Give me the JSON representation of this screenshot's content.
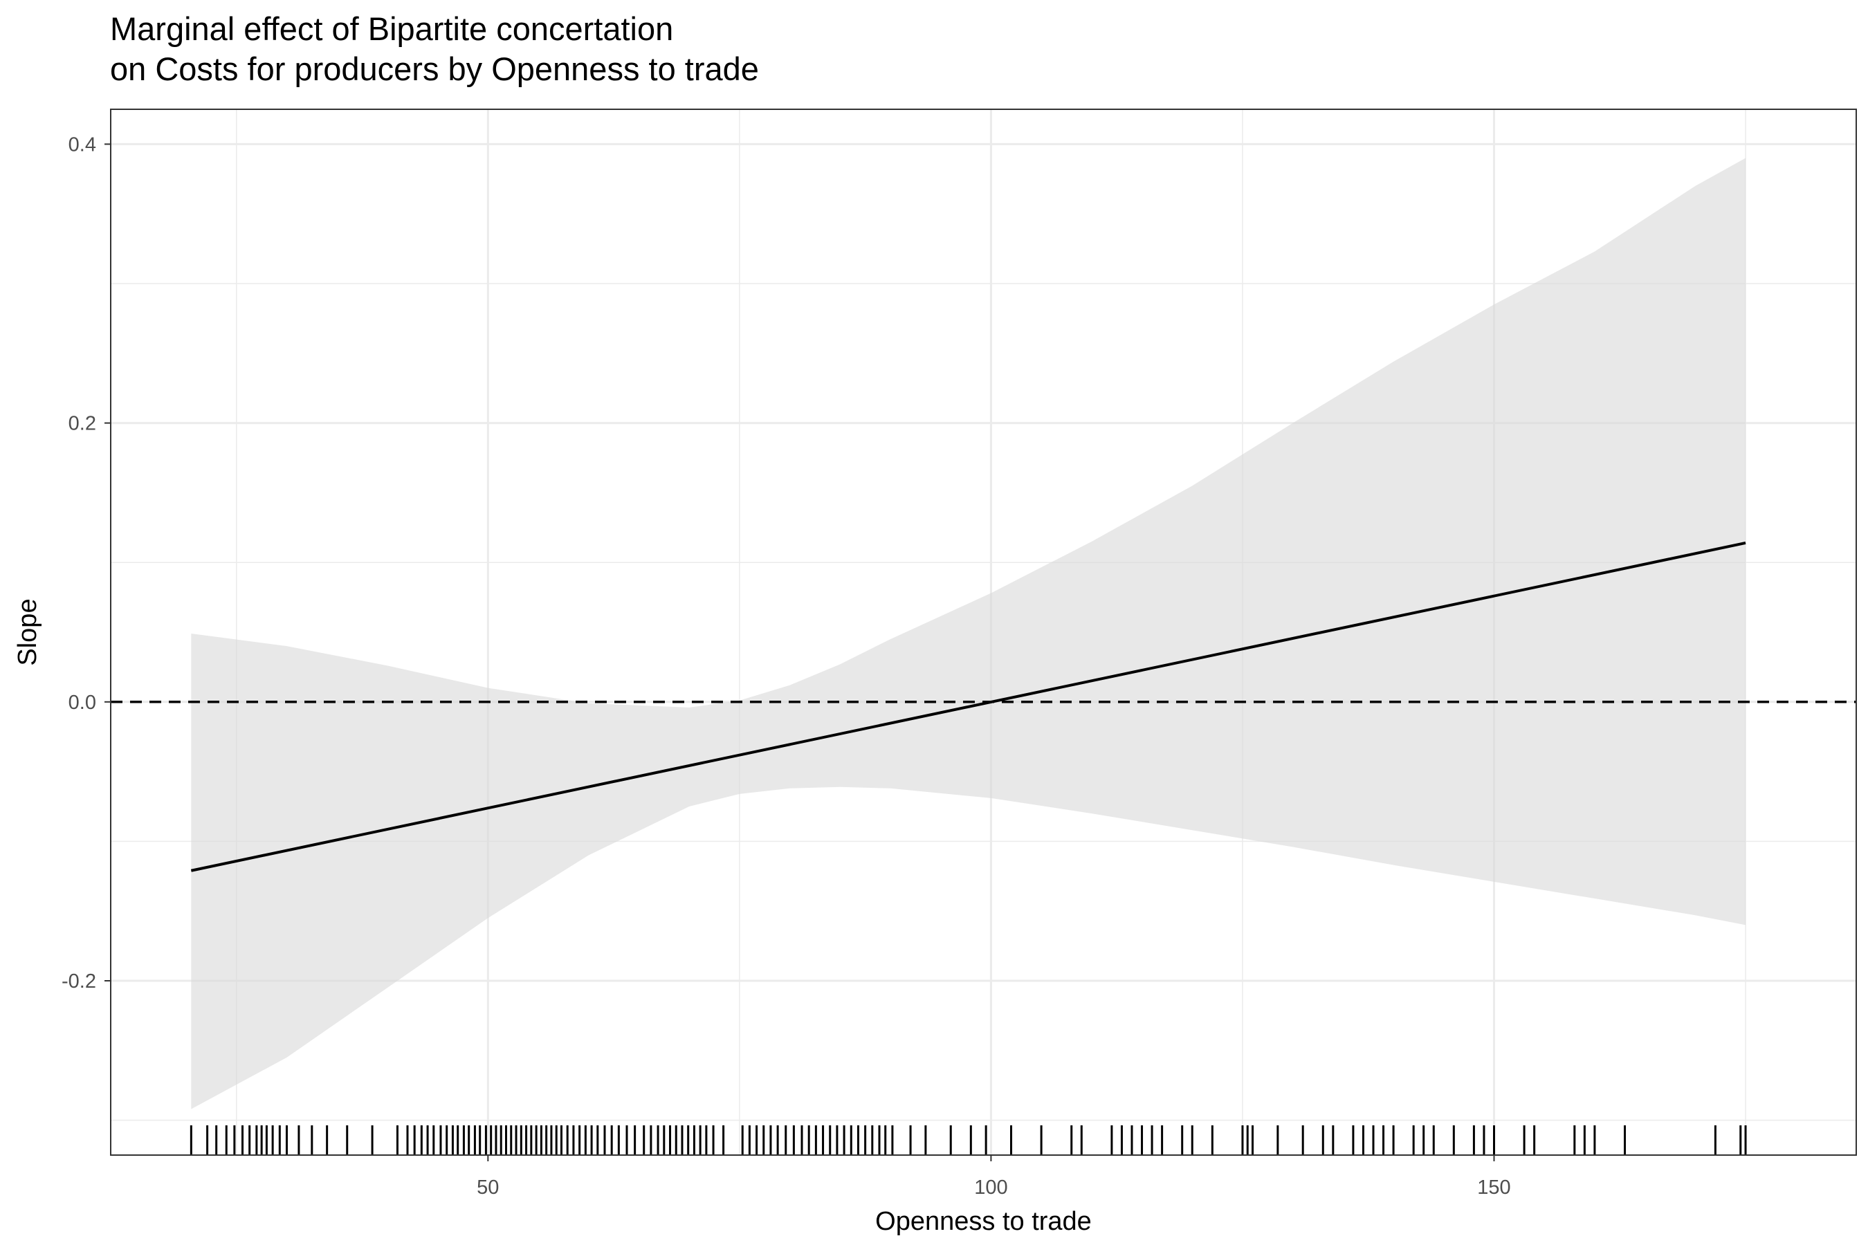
{
  "title_lines": [
    "Marginal effect of Bipartite concertation",
    "on Costs for producers by Openness to trade"
  ],
  "chart_data": {
    "type": "line",
    "title": "Marginal effect of Bipartite concertation on Costs for producers by Openness to trade",
    "xlabel": "Openness to trade",
    "ylabel": "Slope",
    "xlim": [
      12.5,
      186
    ],
    "ylim": [
      -0.325,
      0.425
    ],
    "x_ticks": [
      50,
      100,
      150
    ],
    "x_tick_labels": [
      "50",
      "100",
      "150"
    ],
    "y_ticks": [
      -0.2,
      0.0,
      0.2,
      0.4
    ],
    "y_tick_labels": [
      "-0.2",
      "0.0",
      "0.2",
      "0.4"
    ],
    "grid": true,
    "reference_line": {
      "y": 0.0,
      "style": "dashed"
    },
    "series": [
      {
        "type": "line",
        "x": [
          20.5,
          175
        ],
        "y": [
          -0.121,
          0.114
        ]
      }
    ],
    "confidence_band": {
      "x": [
        20.5,
        30,
        40,
        50,
        60,
        70,
        75,
        80,
        85,
        90,
        100,
        110,
        120,
        130,
        140,
        150,
        160,
        170,
        175
      ],
      "lower": [
        -0.292,
        -0.255,
        -0.205,
        -0.155,
        -0.11,
        -0.075,
        -0.066,
        -0.062,
        -0.061,
        -0.062,
        -0.069,
        -0.08,
        -0.092,
        -0.104,
        -0.117,
        -0.129,
        -0.141,
        -0.153,
        -0.16
      ],
      "upper": [
        0.049,
        0.04,
        0.026,
        0.01,
        -0.001,
        -0.004,
        0.001,
        0.012,
        0.027,
        0.045,
        0.078,
        0.115,
        0.155,
        0.2,
        0.244,
        0.285,
        0.323,
        0.37,
        0.39
      ]
    },
    "rug": [
      20.5,
      22.1,
      23,
      24,
      24.8,
      25.6,
      26.3,
      27,
      27.5,
      28,
      28.6,
      29.3,
      30,
      31.2,
      32.5,
      34,
      36,
      38.5,
      41,
      42,
      42.7,
      43.4,
      44,
      44.6,
      45.3,
      45.9,
      46.5,
      47,
      47.6,
      48.1,
      48.7,
      49.2,
      49.8,
      50.3,
      50.8,
      51.3,
      51.8,
      52.3,
      52.8,
      53.3,
      53.8,
      54.3,
      54.8,
      55.3,
      55.8,
      56.3,
      56.8,
      57.3,
      57.9,
      58.5,
      59.1,
      59.7,
      60.3,
      60.9,
      61.6,
      62.3,
      63,
      63.8,
      64.6,
      65.5,
      66.2,
      66.9,
      67.5,
      68.1,
      68.7,
      69.3,
      69.9,
      70.5,
      71.1,
      71.7,
      72.4,
      73.4,
      75.3,
      76,
      76.7,
      77.4,
      78.1,
      78.8,
      79.6,
      80.4,
      81.2,
      81.9,
      82.6,
      83.3,
      84,
      84.7,
      85.4,
      86.1,
      86.8,
      87.5,
      88.2,
      88.9,
      89.5,
      90.2,
      92,
      93.5,
      96,
      98,
      99.5,
      102,
      105,
      108,
      109,
      112,
      113,
      114,
      115,
      116,
      117,
      119,
      120,
      122,
      125,
      125.5,
      126,
      128.5,
      131,
      133,
      134,
      136,
      137,
      138,
      139,
      140,
      142,
      143,
      144,
      146,
      148,
      149,
      150,
      153,
      154,
      158,
      159,
      160,
      163,
      172,
      174.5,
      175
    ]
  }
}
